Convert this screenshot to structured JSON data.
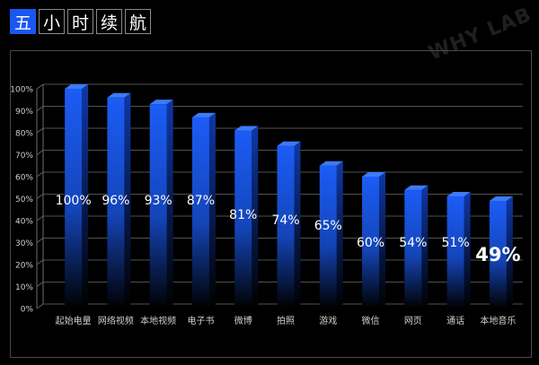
{
  "header": {
    "title_chars": [
      "五",
      "小",
      "时",
      "续",
      "航"
    ]
  },
  "watermark": "WHY LAB",
  "colors": {
    "bar_top": "#1c5cf6",
    "bar_bottom": "#000000",
    "bar_cap": "#3d7af7",
    "bar_side": "#0f38a8",
    "grid": "#6b6b6b",
    "text": "#ffffff",
    "axis_text": "#cfcfcf",
    "title_highlight": "#1a57f0"
  },
  "chart_data": {
    "type": "bar",
    "categories": [
      "起始电量",
      "网络视频",
      "本地视频",
      "电子书",
      "微博",
      "拍照",
      "游戏",
      "微信",
      "网页",
      "通话",
      "本地音乐"
    ],
    "values": [
      100,
      96,
      93,
      87,
      81,
      74,
      65,
      60,
      54,
      51,
      49
    ],
    "value_labels": [
      "100%",
      "96%",
      "93%",
      "87%",
      "81%",
      "74%",
      "65%",
      "60%",
      "54%",
      "51%",
      "49%"
    ],
    "y_ticks": [
      "0%",
      "10%",
      "20%",
      "30%",
      "40%",
      "50%",
      "60%",
      "70%",
      "80%",
      "90%",
      "100%"
    ],
    "ylim": [
      0,
      100
    ],
    "grid": true,
    "bar_style": "3d"
  }
}
